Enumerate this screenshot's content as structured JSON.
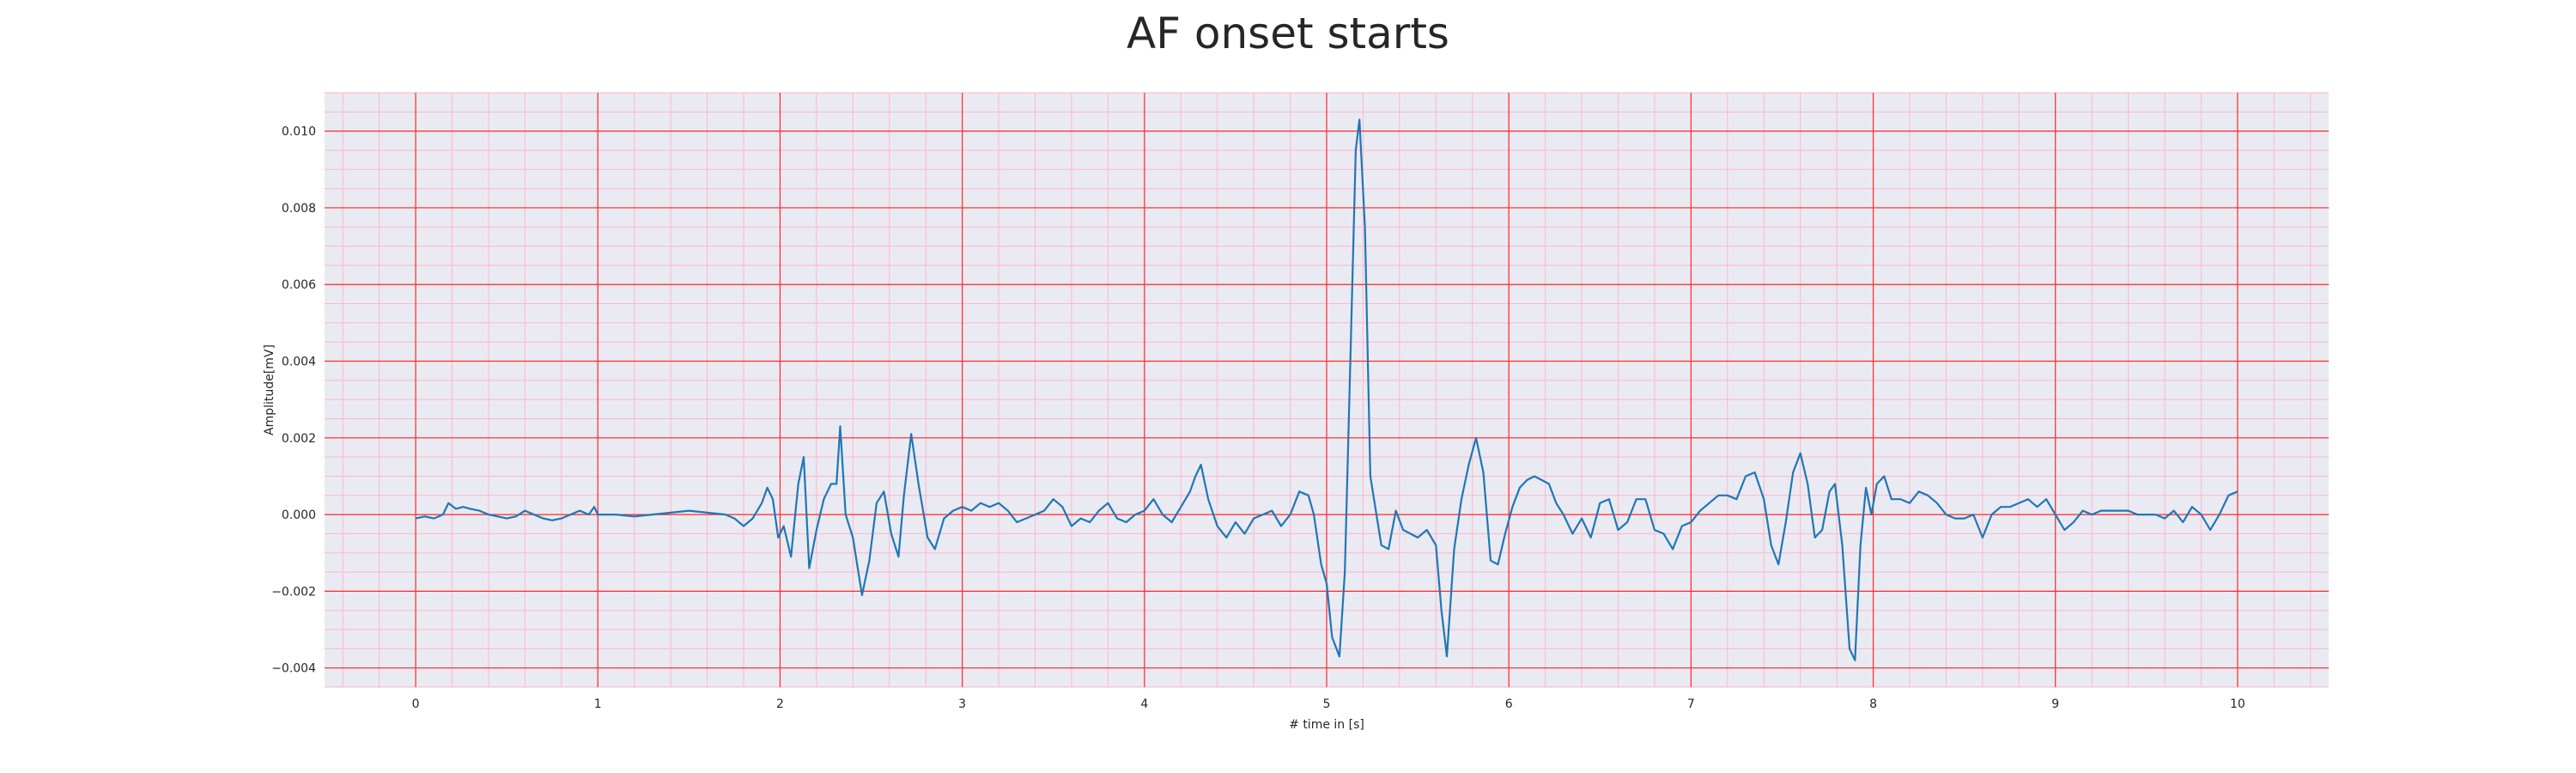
{
  "chart_data": {
    "type": "line",
    "title": "AF onset starts",
    "xlabel": "# time in [s]",
    "ylabel": "Amplitude[mV]",
    "xlim": [
      -0.5,
      10.5
    ],
    "ylim": [
      -0.0045,
      0.011
    ],
    "x_ticks": [
      0,
      1,
      2,
      3,
      4,
      5,
      6,
      7,
      8,
      9,
      10
    ],
    "x_tick_labels": [
      "0",
      "1",
      "2",
      "3",
      "4",
      "5",
      "6",
      "7",
      "8",
      "9",
      "10"
    ],
    "y_ticks": [
      -0.004,
      -0.002,
      0.0,
      0.002,
      0.004,
      0.006,
      0.008,
      0.01
    ],
    "y_tick_labels": [
      "−0.004",
      "−0.002",
      "0.000",
      "0.002",
      "0.004",
      "0.006",
      "0.008",
      "0.010"
    ],
    "grid": true,
    "minor_grid": true,
    "colors": {
      "line": "#1f77b4",
      "plot_background": "#eaeaf2",
      "major_grid": "#ff2a2a",
      "minor_grid": "#ffb6c8"
    },
    "series": [
      {
        "values": [
          [
            0.0,
            -0.0001
          ],
          [
            0.05,
            -5e-05
          ],
          [
            0.1,
            -0.0001
          ],
          [
            0.15,
            0.0
          ],
          [
            0.18,
            0.0003
          ],
          [
            0.22,
            0.00015
          ],
          [
            0.26,
            0.0002
          ],
          [
            0.3,
            0.00015
          ],
          [
            0.35,
            0.0001
          ],
          [
            0.4,
            0.0
          ],
          [
            0.45,
            -5e-05
          ],
          [
            0.5,
            -0.0001
          ],
          [
            0.55,
            -5e-05
          ],
          [
            0.6,
            0.0001
          ],
          [
            0.65,
            0.0
          ],
          [
            0.7,
            -0.0001
          ],
          [
            0.75,
            -0.00015
          ],
          [
            0.8,
            -0.0001
          ],
          [
            0.85,
            0.0
          ],
          [
            0.9,
            0.0001
          ],
          [
            0.95,
            0.0
          ],
          [
            0.98,
            0.0002
          ],
          [
            1.0,
            0.0
          ],
          [
            1.05,
            0.0
          ],
          [
            1.1,
            0.0
          ],
          [
            1.2,
            -5e-05
          ],
          [
            1.3,
            0.0
          ],
          [
            1.4,
            5e-05
          ],
          [
            1.5,
            0.0001
          ],
          [
            1.6,
            5e-05
          ],
          [
            1.7,
            0.0
          ],
          [
            1.75,
            -0.0001
          ],
          [
            1.8,
            -0.0003
          ],
          [
            1.85,
            -0.0001
          ],
          [
            1.9,
            0.0003
          ],
          [
            1.93,
            0.0007
          ],
          [
            1.96,
            0.0004
          ],
          [
            1.99,
            -0.0006
          ],
          [
            2.02,
            -0.0003
          ],
          [
            2.06,
            -0.0011
          ],
          [
            2.1,
            0.0008
          ],
          [
            2.13,
            0.0015
          ],
          [
            2.16,
            -0.0014
          ],
          [
            2.2,
            -0.0004
          ],
          [
            2.24,
            0.0004
          ],
          [
            2.28,
            0.0008
          ],
          [
            2.31,
            0.0008
          ],
          [
            2.33,
            0.0023
          ],
          [
            2.36,
            0.0
          ],
          [
            2.4,
            -0.0006
          ],
          [
            2.45,
            -0.0021
          ],
          [
            2.49,
            -0.0012
          ],
          [
            2.53,
            0.0003
          ],
          [
            2.57,
            0.0006
          ],
          [
            2.61,
            -0.0005
          ],
          [
            2.65,
            -0.0011
          ],
          [
            2.68,
            0.0005
          ],
          [
            2.72,
            0.0021
          ],
          [
            2.76,
            0.0008
          ],
          [
            2.81,
            -0.0006
          ],
          [
            2.85,
            -0.0009
          ],
          [
            2.9,
            -0.0001
          ],
          [
            2.95,
            0.0001
          ],
          [
            3.0,
            0.0002
          ],
          [
            3.05,
            0.0001
          ],
          [
            3.1,
            0.0003
          ],
          [
            3.15,
            0.0002
          ],
          [
            3.2,
            0.0003
          ],
          [
            3.25,
            0.0001
          ],
          [
            3.3,
            -0.0002
          ],
          [
            3.35,
            -0.0001
          ],
          [
            3.4,
            0.0
          ],
          [
            3.45,
            0.0001
          ],
          [
            3.5,
            0.0004
          ],
          [
            3.55,
            0.0002
          ],
          [
            3.6,
            -0.0003
          ],
          [
            3.65,
            -0.0001
          ],
          [
            3.7,
            -0.0002
          ],
          [
            3.75,
            0.0001
          ],
          [
            3.8,
            0.0003
          ],
          [
            3.85,
            -0.0001
          ],
          [
            3.9,
            -0.0002
          ],
          [
            3.95,
            0.0
          ],
          [
            4.0,
            0.0001
          ],
          [
            4.05,
            0.0004
          ],
          [
            4.1,
            0.0
          ],
          [
            4.15,
            -0.0002
          ],
          [
            4.2,
            0.0002
          ],
          [
            4.25,
            0.0006
          ],
          [
            4.28,
            0.001
          ],
          [
            4.31,
            0.0013
          ],
          [
            4.35,
            0.0004
          ],
          [
            4.4,
            -0.0003
          ],
          [
            4.45,
            -0.0006
          ],
          [
            4.5,
            -0.0002
          ],
          [
            4.55,
            -0.0005
          ],
          [
            4.6,
            -0.0001
          ],
          [
            4.65,
            0.0
          ],
          [
            4.7,
            0.0001
          ],
          [
            4.75,
            -0.0003
          ],
          [
            4.8,
            0.0
          ],
          [
            4.85,
            0.0006
          ],
          [
            4.9,
            0.0005
          ],
          [
            4.93,
            0.0
          ],
          [
            4.97,
            -0.0013
          ],
          [
            5.0,
            -0.0018
          ],
          [
            5.03,
            -0.0032
          ],
          [
            5.07,
            -0.0037
          ],
          [
            5.1,
            -0.0015
          ],
          [
            5.13,
            0.004
          ],
          [
            5.16,
            0.0095
          ],
          [
            5.18,
            0.0103
          ],
          [
            5.21,
            0.0075
          ],
          [
            5.24,
            0.001
          ],
          [
            5.3,
            -0.0008
          ],
          [
            5.34,
            -0.0009
          ],
          [
            5.38,
            0.0001
          ],
          [
            5.42,
            -0.0004
          ],
          [
            5.46,
            -0.0005
          ],
          [
            5.5,
            -0.0006
          ],
          [
            5.55,
            -0.0004
          ],
          [
            5.6,
            -0.0008
          ],
          [
            5.63,
            -0.0025
          ],
          [
            5.66,
            -0.0037
          ],
          [
            5.7,
            -0.0009
          ],
          [
            5.74,
            0.0004
          ],
          [
            5.78,
            0.0013
          ],
          [
            5.82,
            0.002
          ],
          [
            5.86,
            0.0011
          ],
          [
            5.9,
            -0.0012
          ],
          [
            5.94,
            -0.0013
          ],
          [
            5.98,
            -0.0005
          ],
          [
            6.02,
            0.0002
          ],
          [
            6.06,
            0.0007
          ],
          [
            6.1,
            0.0009
          ],
          [
            6.14,
            0.001
          ],
          [
            6.18,
            0.0009
          ],
          [
            6.22,
            0.0008
          ],
          [
            6.26,
            0.0003
          ],
          [
            6.3,
            0.0
          ],
          [
            6.35,
            -0.0005
          ],
          [
            6.4,
            -0.0001
          ],
          [
            6.45,
            -0.0006
          ],
          [
            6.5,
            0.0003
          ],
          [
            6.55,
            0.0004
          ],
          [
            6.6,
            -0.0004
          ],
          [
            6.65,
            -0.0002
          ],
          [
            6.7,
            0.0004
          ],
          [
            6.75,
            0.0004
          ],
          [
            6.8,
            -0.0004
          ],
          [
            6.85,
            -0.0005
          ],
          [
            6.9,
            -0.0009
          ],
          [
            6.95,
            -0.0003
          ],
          [
            7.0,
            -0.0002
          ],
          [
            7.05,
            0.0001
          ],
          [
            7.1,
            0.0003
          ],
          [
            7.15,
            0.0005
          ],
          [
            7.2,
            0.0005
          ],
          [
            7.25,
            0.0004
          ],
          [
            7.3,
            0.001
          ],
          [
            7.35,
            0.0011
          ],
          [
            7.4,
            0.0004
          ],
          [
            7.44,
            -0.0008
          ],
          [
            7.48,
            -0.0013
          ],
          [
            7.52,
            -0.0002
          ],
          [
            7.56,
            0.0011
          ],
          [
            7.6,
            0.0016
          ],
          [
            7.64,
            0.0008
          ],
          [
            7.68,
            -0.0006
          ],
          [
            7.72,
            -0.0004
          ],
          [
            7.76,
            0.0006
          ],
          [
            7.79,
            0.0008
          ],
          [
            7.83,
            -0.0008
          ],
          [
            7.87,
            -0.0035
          ],
          [
            7.9,
            -0.0038
          ],
          [
            7.93,
            -0.0008
          ],
          [
            7.96,
            0.0007
          ],
          [
            7.99,
            0.0
          ],
          [
            8.02,
            0.0008
          ],
          [
            8.06,
            0.001
          ],
          [
            8.1,
            0.0004
          ],
          [
            8.15,
            0.0004
          ],
          [
            8.2,
            0.0003
          ],
          [
            8.25,
            0.0006
          ],
          [
            8.3,
            0.0005
          ],
          [
            8.35,
            0.0003
          ],
          [
            8.4,
            0.0
          ],
          [
            8.45,
            -0.0001
          ],
          [
            8.5,
            -0.0001
          ],
          [
            8.55,
            0.0
          ],
          [
            8.6,
            -0.0006
          ],
          [
            8.65,
            0.0
          ],
          [
            8.7,
            0.0002
          ],
          [
            8.75,
            0.0002
          ],
          [
            8.8,
            0.0003
          ],
          [
            8.85,
            0.0004
          ],
          [
            8.9,
            0.0002
          ],
          [
            8.95,
            0.0004
          ],
          [
            9.0,
            0.0
          ],
          [
            9.05,
            -0.0004
          ],
          [
            9.1,
            -0.0002
          ],
          [
            9.15,
            0.0001
          ],
          [
            9.2,
            0.0
          ],
          [
            9.25,
            0.0001
          ],
          [
            9.3,
            0.0001
          ],
          [
            9.35,
            0.0001
          ],
          [
            9.4,
            0.0001
          ],
          [
            9.45,
            0.0
          ],
          [
            9.5,
            0.0
          ],
          [
            9.55,
            0.0
          ],
          [
            9.6,
            -0.0001
          ],
          [
            9.65,
            0.0001
          ],
          [
            9.7,
            -0.0002
          ],
          [
            9.75,
            0.0002
          ],
          [
            9.8,
            0.0
          ],
          [
            9.85,
            -0.0004
          ],
          [
            9.9,
            0.0
          ],
          [
            9.95,
            0.0005
          ],
          [
            10.0,
            0.0006
          ]
        ]
      }
    ]
  }
}
